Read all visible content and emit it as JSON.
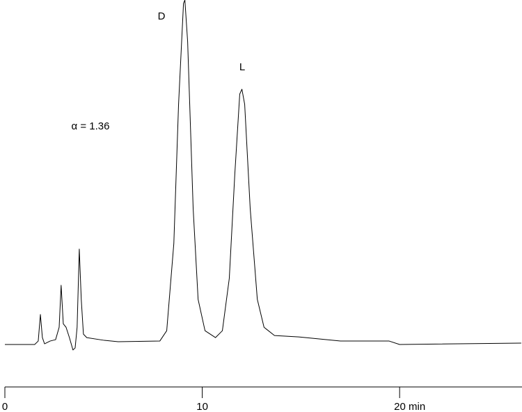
{
  "chart_data": {
    "type": "line",
    "annotations": [
      "D",
      "L",
      "α = 1.36"
    ],
    "x": [
      0,
      1.51,
      1.69,
      1.8,
      1.9,
      2.01,
      2.15,
      2.29,
      2.57,
      2.75,
      2.85,
      2.96,
      3.1,
      3.27,
      3.45,
      3.56,
      3.66,
      3.77,
      3.87,
      3.98,
      4.15,
      5.04,
      5.74,
      7.85,
      8.2,
      8.56,
      8.8,
      9.05,
      9.12,
      9.26,
      9.54,
      9.79,
      10.14,
      10.67,
      11.02,
      11.37,
      11.65,
      11.9,
      12.01,
      12.15,
      12.43,
      12.79,
      13.13,
      13.66,
      14.89,
      17.0,
      19.47,
      20.0,
      26.16
    ],
    "series": [
      {
        "color": "#000000",
        "values": [
          0,
          0,
          1,
          8.7,
          2,
          0.2,
          0.6,
          1,
          1.4,
          5,
          17.2,
          6,
          5,
          2,
          -1.6,
          -1,
          5,
          27.7,
          13.1,
          3,
          2,
          1.2,
          0.8,
          1,
          4,
          29.3,
          69.7,
          99,
          100,
          87.9,
          39.4,
          13.1,
          4,
          2,
          4,
          19.2,
          49.5,
          72.7,
          74.1,
          69.7,
          39.4,
          13.1,
          5,
          2.6,
          2.2,
          1,
          1,
          0,
          0.4
        ]
      }
    ],
    "xlim": [
      0,
      26.2
    ],
    "xticks": [
      0,
      10,
      {
        "value": 20,
        "label": "20 min"
      }
    ],
    "ylim": [
      -10,
      100
    ]
  }
}
